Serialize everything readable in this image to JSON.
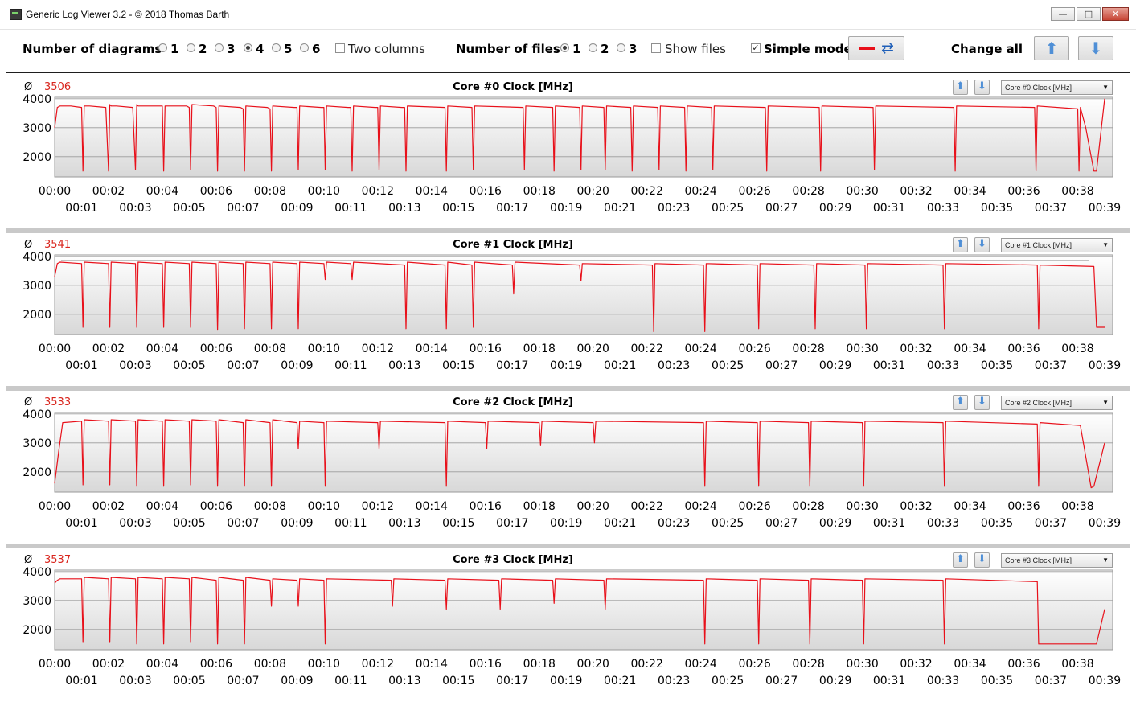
{
  "window": {
    "title": "Generic Log Viewer 3.2 - © 2018 Thomas Barth",
    "minimize_glyph": "—",
    "maximize_glyph": "□",
    "close_glyph": "✕"
  },
  "toolbar": {
    "diagrams_label": "Number of diagrams",
    "diagram_options": [
      "1",
      "2",
      "3",
      "4",
      "5",
      "6"
    ],
    "diagram_selected": "4",
    "two_columns_label": "Two columns",
    "two_columns_checked": false,
    "files_label": "Number of files",
    "file_options": [
      "1",
      "2",
      "3"
    ],
    "file_selected": "1",
    "show_files_label": "Show files",
    "show_files_checked": false,
    "simple_mode_label": "Simple mode",
    "simple_mode_checked": true,
    "line_color": "#e8101a",
    "change_all_label": "Change all",
    "up_arrow": "🡅",
    "down_arrow": "🡇"
  },
  "panels": [
    {
      "title": "Core #0 Clock [MHz]",
      "average_symbol": "Ø",
      "average": "3506",
      "selector_value": "Core #0 Clock [MHz]"
    },
    {
      "title": "Core #1 Clock [MHz]",
      "average_symbol": "Ø",
      "average": "3541",
      "selector_value": "Core #1 Clock [MHz]"
    },
    {
      "title": "Core #2 Clock [MHz]",
      "average_symbol": "Ø",
      "average": "3533",
      "selector_value": "Core #2 Clock [MHz]"
    },
    {
      "title": "Core #3 Clock [MHz]",
      "average_symbol": "Ø",
      "average": "3537",
      "selector_value": "Core #3 Clock [MHz]"
    }
  ],
  "chart_data": [
    {
      "type": "line",
      "title": "Core #0 Clock [MHz]",
      "series": [
        {
          "name": "",
          "color": "#e8101a",
          "x_minutes": [
            0,
            0.1,
            0.2,
            0.6,
            1.0,
            1.05,
            1.1,
            1.3,
            1.9,
            2.0,
            2.05,
            2.1,
            2.3,
            2.9,
            3.0,
            3.05,
            3.1,
            4.0,
            4.05,
            4.1,
            4.9,
            5.0,
            5.05,
            5.1,
            5.9,
            6.0,
            6.05,
            6.1,
            6.9,
            7.0,
            7.05,
            7.1,
            7.9,
            8.0,
            8.05,
            8.1,
            8.9,
            9.0,
            9.05,
            9.1,
            9.9,
            10.0,
            10.05,
            10.1,
            10.9,
            11.0,
            11.05,
            11.1,
            11.9,
            12.0,
            12.05,
            12.1,
            12.9,
            13.0,
            13.05,
            13.1,
            14.5,
            14.55,
            14.6,
            15.5,
            15.55,
            15.6,
            17.4,
            17.45,
            17.5,
            18.5,
            18.55,
            18.6,
            19.5,
            19.55,
            19.6,
            20.4,
            20.45,
            20.5,
            21.4,
            21.45,
            21.5,
            22.4,
            22.45,
            22.5,
            23.4,
            23.45,
            23.5,
            24.4,
            24.45,
            24.5,
            26.4,
            26.45,
            26.5,
            28.4,
            28.45,
            28.5,
            30.4,
            30.45,
            30.5,
            33.4,
            33.45,
            33.5,
            36.4,
            36.45,
            36.5,
            38.0,
            38.05,
            38.1,
            38.3,
            38.6,
            38.7,
            39.0
          ],
          "y_mhz": [
            3000,
            3700,
            3750,
            3750,
            3700,
            1500,
            3750,
            3750,
            3700,
            1500,
            3800,
            3750,
            3750,
            3700,
            1550,
            3800,
            3750,
            3750,
            1500,
            3750,
            3750,
            3700,
            1550,
            3800,
            3750,
            3700,
            1500,
            3750,
            3700,
            3650,
            1500,
            3750,
            3700,
            3650,
            1500,
            3750,
            3700,
            3700,
            1550,
            3750,
            3700,
            3700,
            1550,
            3750,
            3700,
            3700,
            1500,
            3750,
            3700,
            3700,
            1550,
            3750,
            3700,
            3700,
            1500,
            3750,
            3700,
            1500,
            3750,
            3700,
            1550,
            3750,
            3700,
            1550,
            3750,
            3700,
            1500,
            3750,
            3700,
            1550,
            3750,
            3700,
            1550,
            3750,
            3700,
            1500,
            3750,
            3700,
            1550,
            3750,
            3700,
            1500,
            3750,
            3700,
            1550,
            3750,
            3700,
            1500,
            3750,
            3700,
            1500,
            3750,
            3700,
            1550,
            3750,
            3700,
            1500,
            3750,
            3700,
            1500,
            3750,
            3650,
            1500,
            3700,
            3000,
            1500,
            1500,
            4000
          ]
        }
      ],
      "x_ticks": [
        "00:00",
        "00:01",
        "00:02",
        "00:03",
        "00:04",
        "00:05",
        "00:06",
        "00:07",
        "00:08",
        "00:09",
        "00:10",
        "00:11",
        "00:12",
        "00:13",
        "00:14",
        "00:15",
        "00:16",
        "00:17",
        "00:18",
        "00:19",
        "00:20",
        "00:21",
        "00:22",
        "00:23",
        "00:24",
        "00:25",
        "00:26",
        "00:27",
        "00:28",
        "00:29",
        "00:30",
        "00:31",
        "00:32",
        "00:33",
        "00:34",
        "00:35",
        "00:36",
        "00:37",
        "00:38",
        "00:39"
      ],
      "y_ticks": [
        "4000",
        "3000",
        "2000"
      ],
      "ylim": [
        1300,
        4050
      ],
      "xlim": [
        0,
        39.3
      ],
      "grid": true
    },
    {
      "type": "line",
      "title": "Core #1 Clock [MHz]",
      "series": [
        {
          "name": "",
          "color": "#e8101a",
          "x_minutes": [
            0,
            0.1,
            0.2,
            1.0,
            1.05,
            1.1,
            2.0,
            2.05,
            2.1,
            3.0,
            3.05,
            3.1,
            4.0,
            4.05,
            4.1,
            5.0,
            5.05,
            5.1,
            6.0,
            6.05,
            6.1,
            7.0,
            7.05,
            7.1,
            8.0,
            8.05,
            8.1,
            9.0,
            9.05,
            9.1,
            10.0,
            10.05,
            10.1,
            11.0,
            11.05,
            11.1,
            13.0,
            13.05,
            13.1,
            14.5,
            14.55,
            14.6,
            15.5,
            15.55,
            15.6,
            17.0,
            17.05,
            17.1,
            19.5,
            19.55,
            19.6,
            22.2,
            22.25,
            22.3,
            24.1,
            24.15,
            24.2,
            26.1,
            26.15,
            26.2,
            28.2,
            28.25,
            28.3,
            30.1,
            30.15,
            30.2,
            33.0,
            33.05,
            33.1,
            36.5,
            36.55,
            36.6,
            38.6,
            38.7,
            39.0
          ],
          "y_mhz": [
            3300,
            3750,
            3800,
            3750,
            1550,
            3800,
            3750,
            1550,
            3800,
            3750,
            1550,
            3800,
            3750,
            1550,
            3800,
            3750,
            1550,
            3800,
            3750,
            1450,
            3800,
            3750,
            1500,
            3800,
            3750,
            1500,
            3800,
            3750,
            1500,
            3800,
            3750,
            3200,
            3800,
            3750,
            3200,
            3800,
            3700,
            1500,
            3800,
            3700,
            1500,
            3800,
            3700,
            1550,
            3800,
            3700,
            2700,
            3800,
            3700,
            3150,
            3750,
            3700,
            1400,
            3750,
            3700,
            1400,
            3750,
            3700,
            1500,
            3750,
            3700,
            1500,
            3750,
            3700,
            1500,
            3750,
            3700,
            1500,
            3750,
            3700,
            1500,
            3700,
            3650,
            1550,
            1550
          ]
        }
      ],
      "x_ticks": [
        "00:00",
        "00:01",
        "00:02",
        "00:03",
        "00:04",
        "00:05",
        "00:06",
        "00:07",
        "00:08",
        "00:09",
        "00:10",
        "00:11",
        "00:12",
        "00:13",
        "00:14",
        "00:15",
        "00:16",
        "00:17",
        "00:18",
        "00:19",
        "00:20",
        "00:21",
        "00:22",
        "00:23",
        "00:24",
        "00:25",
        "00:26",
        "00:27",
        "00:28",
        "00:29",
        "00:30",
        "00:31",
        "00:32",
        "00:33",
        "00:34",
        "00:35",
        "00:36",
        "00:37",
        "00:38",
        "00:39"
      ],
      "y_ticks": [
        "4000",
        "3000",
        "2000"
      ],
      "ylim": [
        1300,
        4050
      ],
      "xlim": [
        0,
        39.3
      ],
      "grid": true,
      "reference_line_mhz": 3850
    },
    {
      "type": "line",
      "title": "Core #2 Clock [MHz]",
      "series": [
        {
          "name": "",
          "color": "#e8101a",
          "x_minutes": [
            0,
            0.15,
            0.3,
            1.0,
            1.05,
            1.1,
            2.0,
            2.05,
            2.1,
            3.0,
            3.05,
            3.1,
            4.0,
            4.05,
            4.1,
            5.0,
            5.05,
            5.1,
            6.0,
            6.05,
            6.1,
            7.0,
            7.05,
            7.1,
            8.0,
            8.05,
            8.1,
            9.0,
            9.05,
            9.1,
            10.0,
            10.05,
            10.1,
            12.0,
            12.05,
            12.1,
            14.5,
            14.55,
            14.6,
            16.0,
            16.05,
            16.1,
            18.0,
            18.05,
            18.1,
            20.0,
            20.05,
            20.1,
            24.1,
            24.15,
            24.2,
            26.1,
            26.15,
            26.2,
            28.0,
            28.05,
            28.1,
            30.0,
            30.05,
            30.1,
            33.0,
            33.05,
            33.1,
            36.5,
            36.55,
            36.6,
            38.1,
            38.5,
            38.6,
            39.0
          ],
          "y_mhz": [
            1600,
            2700,
            3700,
            3750,
            1550,
            3800,
            3750,
            1550,
            3800,
            3750,
            1500,
            3800,
            3750,
            1500,
            3800,
            3750,
            1550,
            3800,
            3750,
            1500,
            3800,
            3700,
            1500,
            3800,
            3700,
            1500,
            3800,
            3700,
            2800,
            3750,
            3700,
            1500,
            3750,
            3700,
            2800,
            3750,
            3700,
            1500,
            3750,
            3700,
            2800,
            3750,
            3700,
            2900,
            3750,
            3700,
            3000,
            3750,
            3700,
            1500,
            3750,
            3700,
            1500,
            3750,
            3700,
            1500,
            3750,
            3700,
            1500,
            3750,
            3700,
            1500,
            3750,
            3650,
            1500,
            3700,
            3600,
            1450,
            1500,
            3000
          ]
        }
      ],
      "x_ticks": [
        "00:00",
        "00:01",
        "00:02",
        "00:03",
        "00:04",
        "00:05",
        "00:06",
        "00:07",
        "00:08",
        "00:09",
        "00:10",
        "00:11",
        "00:12",
        "00:13",
        "00:14",
        "00:15",
        "00:16",
        "00:17",
        "00:18",
        "00:19",
        "00:20",
        "00:21",
        "00:22",
        "00:23",
        "00:24",
        "00:25",
        "00:26",
        "00:27",
        "00:28",
        "00:29",
        "00:30",
        "00:31",
        "00:32",
        "00:33",
        "00:34",
        "00:35",
        "00:36",
        "00:37",
        "00:38",
        "00:39"
      ],
      "y_ticks": [
        "4000",
        "3000",
        "2000"
      ],
      "ylim": [
        1300,
        4050
      ],
      "xlim": [
        0,
        39.3
      ],
      "grid": true
    },
    {
      "type": "line",
      "title": "Core #3 Clock [MHz]",
      "series": [
        {
          "name": "",
          "color": "#e8101a",
          "x_minutes": [
            0,
            0.1,
            0.2,
            1.0,
            1.05,
            1.1,
            2.0,
            2.05,
            2.1,
            3.0,
            3.05,
            3.1,
            4.0,
            4.05,
            4.1,
            5.0,
            5.05,
            5.1,
            6.0,
            6.05,
            6.1,
            7.0,
            7.05,
            7.1,
            8.0,
            8.05,
            8.1,
            9.0,
            9.05,
            9.1,
            10.0,
            10.05,
            10.1,
            12.5,
            12.55,
            12.6,
            14.5,
            14.55,
            14.6,
            16.5,
            16.55,
            16.6,
            18.5,
            18.55,
            18.6,
            20.4,
            20.45,
            20.5,
            24.1,
            24.15,
            24.2,
            26.1,
            26.15,
            26.2,
            28.0,
            28.05,
            28.1,
            30.0,
            30.05,
            30.1,
            33.0,
            33.05,
            33.1,
            36.5,
            36.55,
            36.6,
            38.6,
            38.7,
            39.0
          ],
          "y_mhz": [
            3600,
            3700,
            3750,
            3750,
            1550,
            3800,
            3750,
            1550,
            3800,
            3750,
            1500,
            3800,
            3750,
            1500,
            3800,
            3750,
            1550,
            3800,
            3700,
            1500,
            3800,
            3700,
            1500,
            3800,
            3700,
            2800,
            3750,
            3700,
            2800,
            3750,
            3700,
            1500,
            3750,
            3700,
            2800,
            3750,
            3700,
            2700,
            3750,
            3700,
            2700,
            3750,
            3700,
            2900,
            3750,
            3700,
            2700,
            3750,
            3700,
            1500,
            3750,
            3700,
            1500,
            3750,
            3700,
            1500,
            3750,
            3700,
            1500,
            3750,
            3700,
            1500,
            3750,
            3650,
            1500,
            1500,
            1500,
            1500,
            2700
          ]
        }
      ],
      "x_ticks": [
        "00:00",
        "00:01",
        "00:02",
        "00:03",
        "00:04",
        "00:05",
        "00:06",
        "00:07",
        "00:08",
        "00:09",
        "00:10",
        "00:11",
        "00:12",
        "00:13",
        "00:14",
        "00:15",
        "00:16",
        "00:17",
        "00:18",
        "00:19",
        "00:20",
        "00:21",
        "00:22",
        "00:23",
        "00:24",
        "00:25",
        "00:26",
        "00:27",
        "00:28",
        "00:29",
        "00:30",
        "00:31",
        "00:32",
        "00:33",
        "00:34",
        "00:35",
        "00:36",
        "00:37",
        "00:38",
        "00:39"
      ],
      "y_ticks": [
        "4000",
        "3000",
        "2000"
      ],
      "ylim": [
        1300,
        4050
      ],
      "xlim": [
        0,
        39.3
      ],
      "grid": true
    }
  ]
}
